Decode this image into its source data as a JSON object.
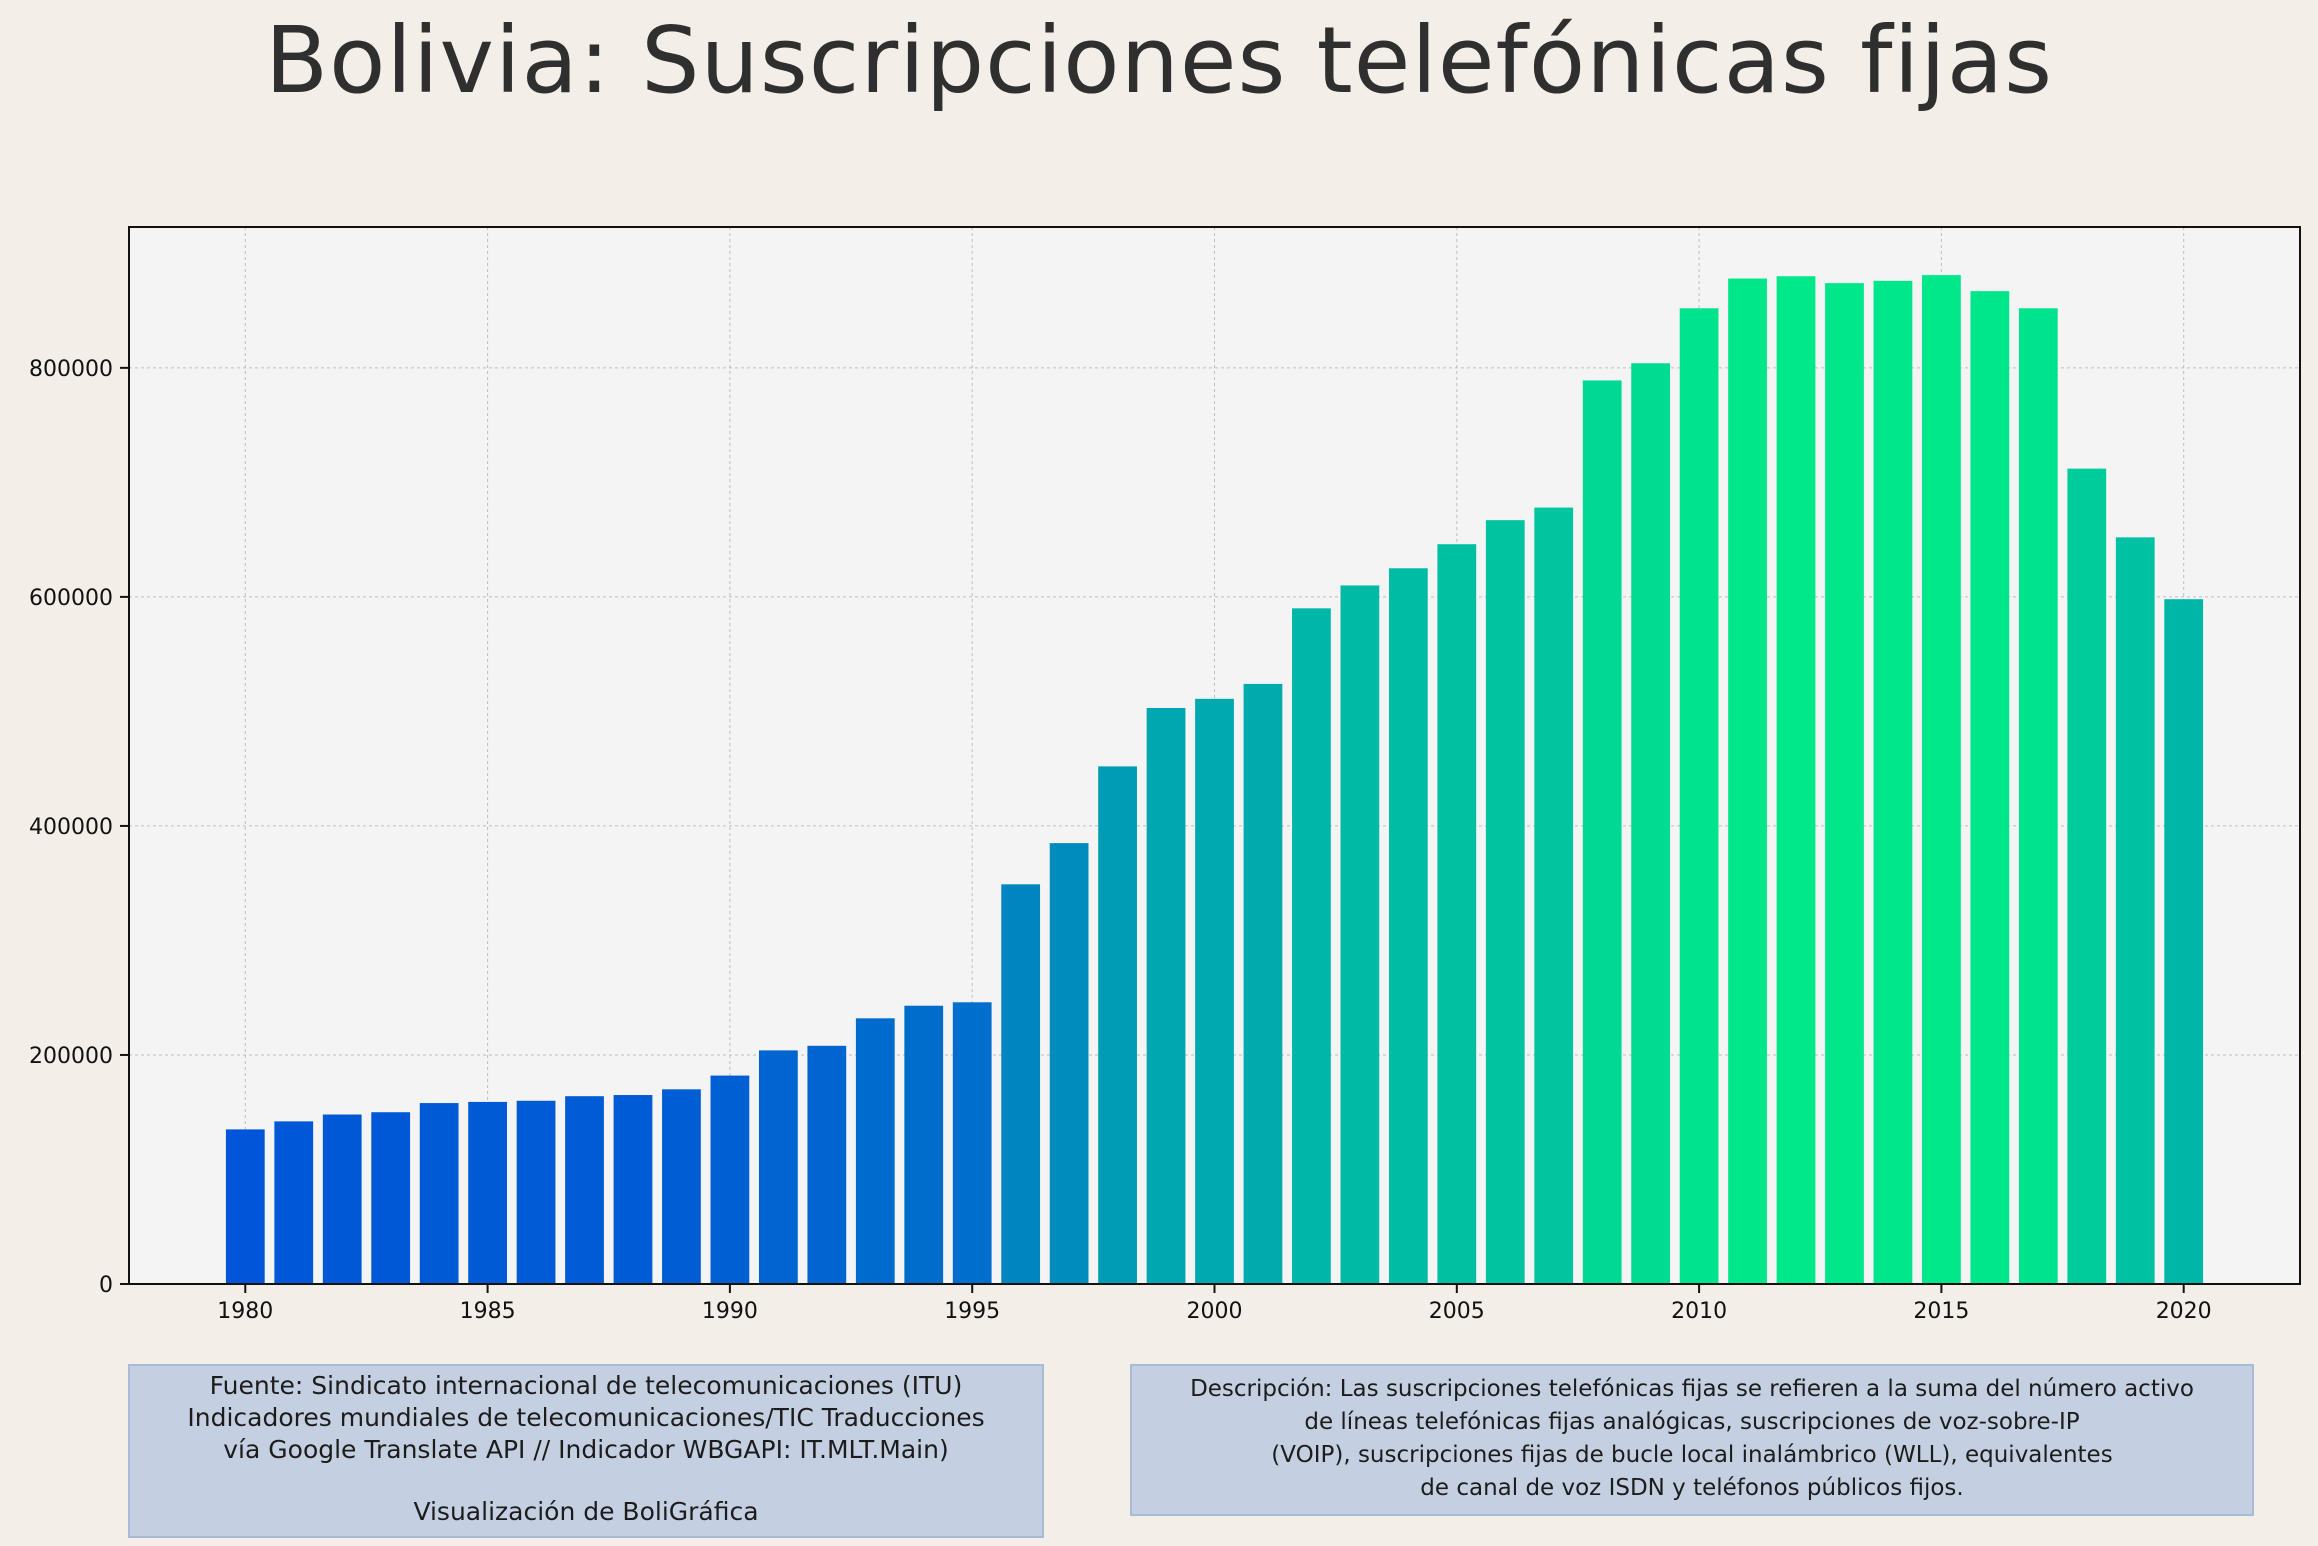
{
  "chart_data": {
    "type": "bar",
    "title": "Bolivia:  Suscripciones telefónicas fijas",
    "xlabel": "",
    "ylabel": "",
    "x": [
      1980,
      1981,
      1982,
      1983,
      1984,
      1985,
      1986,
      1987,
      1988,
      1989,
      1990,
      1991,
      1992,
      1993,
      1994,
      1995,
      1996,
      1997,
      1998,
      1999,
      2000,
      2001,
      2002,
      2003,
      2004,
      2005,
      2006,
      2007,
      2008,
      2009,
      2010,
      2011,
      2012,
      2013,
      2014,
      2015,
      2016,
      2017,
      2018,
      2019,
      2020
    ],
    "values": [
      135000,
      142000,
      148000,
      150000,
      158000,
      159000,
      160000,
      164000,
      165000,
      170000,
      182000,
      204000,
      208000,
      232000,
      243000,
      246000,
      349000,
      385000,
      452000,
      503000,
      511000,
      524000,
      590000,
      610000,
      625000,
      646000,
      667000,
      678000,
      789000,
      804000,
      852000,
      878000,
      880000,
      874000,
      876000,
      881000,
      867000,
      852000,
      712000,
      652000,
      598000
    ],
    "xlim": [
      1977.6,
      2022.4
    ],
    "ylim": [
      0,
      923000
    ],
    "x_ticks": [
      1980,
      1985,
      1990,
      1995,
      2000,
      2005,
      2010,
      2015,
      2020
    ],
    "x_tick_labels": [
      "1980",
      "1985",
      "1990",
      "1995",
      "2000",
      "2005",
      "2010",
      "2015",
      "2020"
    ],
    "y_ticks": [
      0,
      200000,
      400000,
      600000,
      800000
    ],
    "y_tick_labels": [
      "0",
      "200000",
      "400000",
      "600000",
      "800000"
    ],
    "grid": true,
    "legend": "none",
    "colormap": [
      "#0055d8",
      "#00a8b0",
      "#00e88a"
    ],
    "plot_background": "#f4f4f4",
    "page_background": "#f3efe8"
  },
  "footnotes": {
    "source_lines": [
      "Fuente: Sindicato internacional de telecomunicaciones (ITU)",
      "Indicadores mundiales de telecomunicaciones/TIC Traducciones",
      "vía Google Translate API // Indicador WBGAPI: IT.MLT.Main)"
    ],
    "credit": "Visualización de BoliGráfica",
    "description_lines": [
      "Descripción: Las suscripciones telefónicas fijas se refieren a la suma del número activo",
      "de líneas telefónicas fijas analógicas, suscripciones de voz-sobre-IP",
      "(VOIP), suscripciones fijas de bucle local inalámbrico (WLL), equivalentes",
      "de canal de voz ISDN y teléfonos públicos fijos."
    ]
  }
}
